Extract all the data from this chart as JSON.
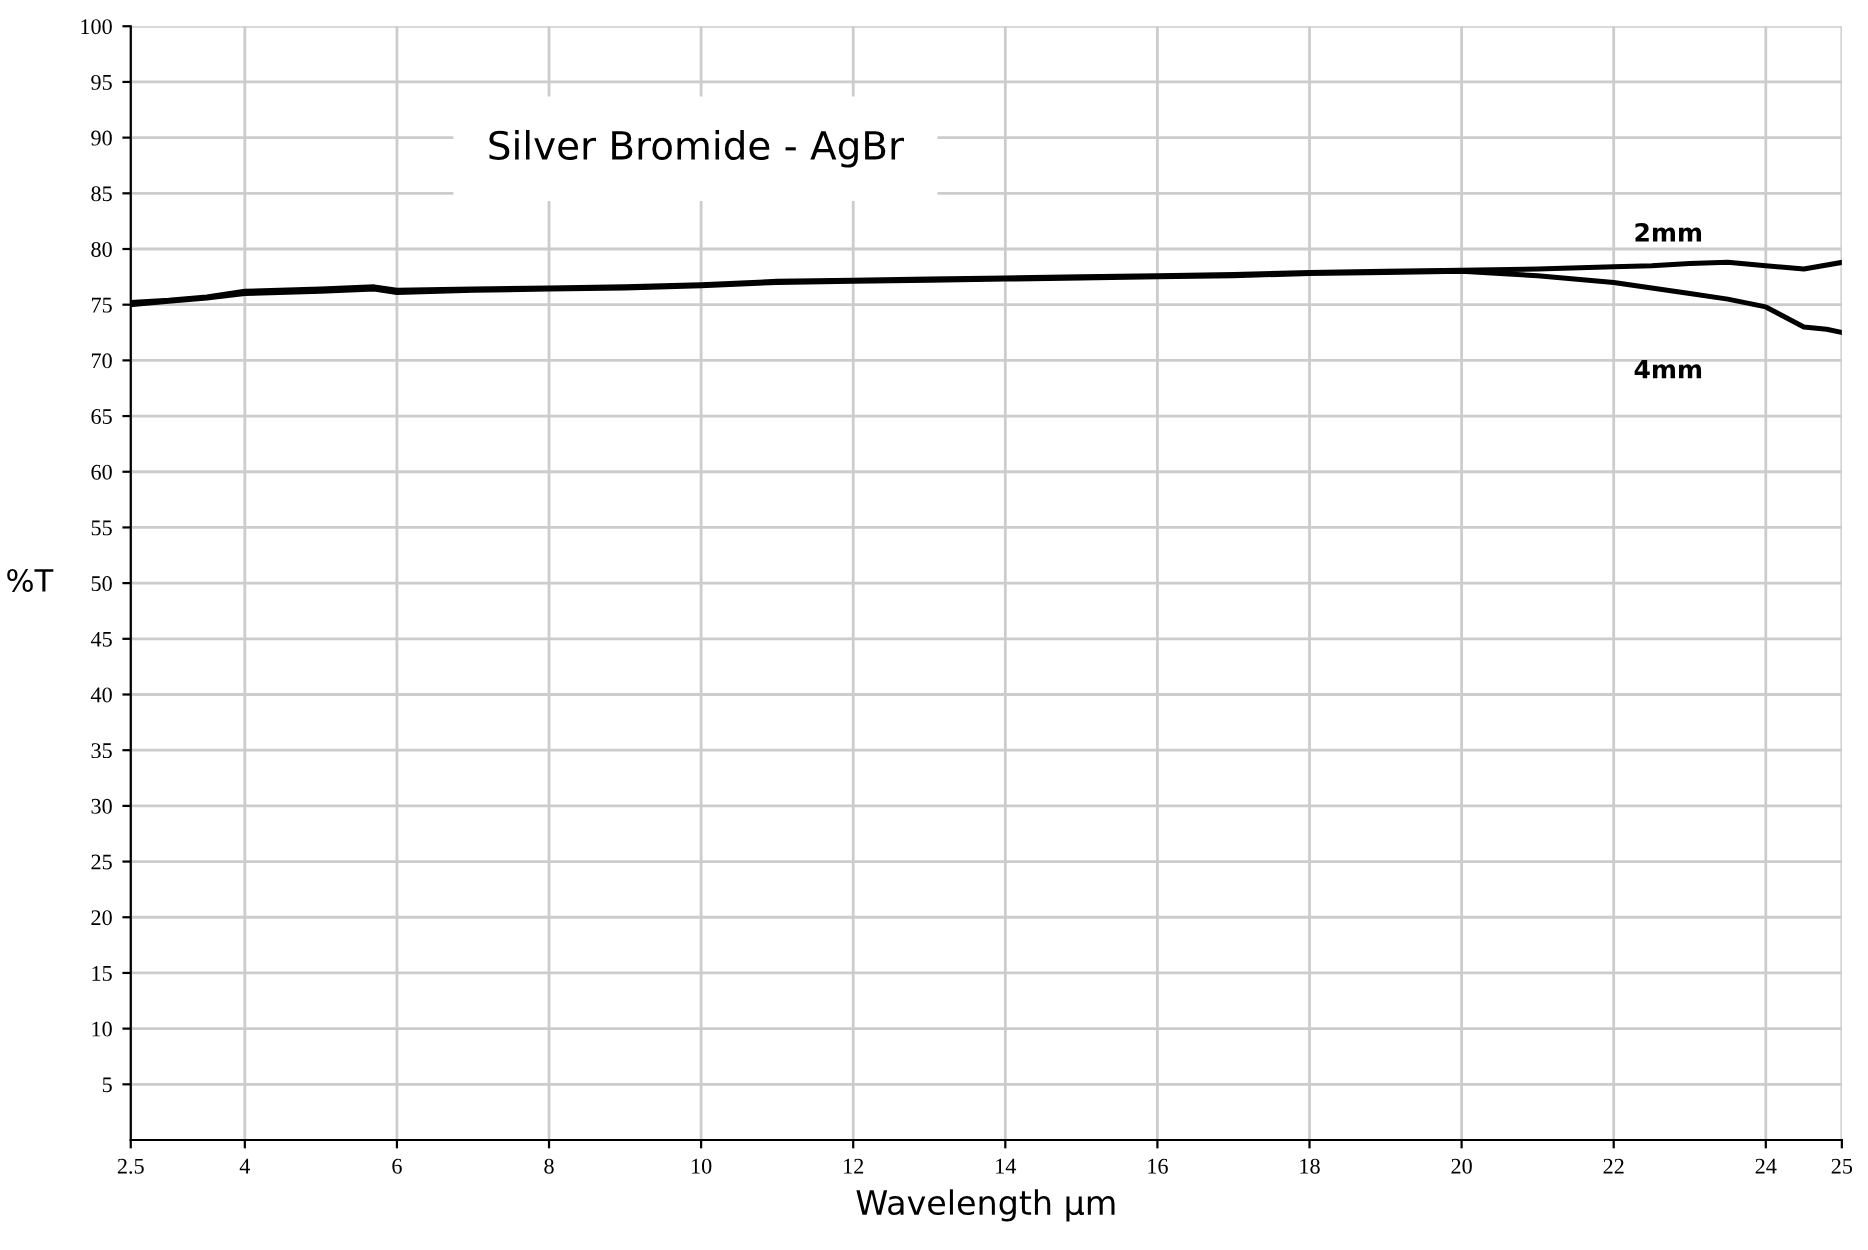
{
  "chart_data": {
    "type": "line",
    "title": "Silver Bromide - AgBr",
    "xlabel": "Wavelength µm",
    "ylabel": "%T",
    "xlim": [
      2.5,
      25
    ],
    "xticks": [
      2.5,
      4,
      6,
      8,
      10,
      12,
      14,
      16,
      18,
      20,
      22,
      24,
      25
    ],
    "ylim": [
      0,
      100
    ],
    "yticks": [
      5,
      10,
      15,
      20,
      25,
      30,
      35,
      40,
      45,
      50,
      55,
      60,
      65,
      70,
      75,
      80,
      85,
      90,
      95,
      100
    ],
    "grid": true,
    "legend": false,
    "marker": "none",
    "line_style": "solid",
    "series": [
      {
        "name": "2mm",
        "color": "#000000",
        "x": [
          2.5,
          3,
          3.5,
          4,
          5,
          5.7,
          6,
          7,
          8,
          9,
          10,
          11,
          12,
          13,
          14,
          15,
          16,
          17,
          18,
          19,
          20,
          21,
          22,
          22.5,
          23,
          23.5,
          24,
          24.5,
          25
        ],
        "values": [
          75.2,
          75.4,
          75.7,
          76.2,
          76.4,
          76.6,
          76.3,
          76.4,
          76.5,
          76.6,
          76.8,
          77.1,
          77.2,
          77.3,
          77.4,
          77.5,
          77.6,
          77.7,
          77.9,
          78.0,
          78.1,
          78.2,
          78.4,
          78.5,
          78.7,
          78.8,
          78.5,
          78.2,
          78.8
        ]
      },
      {
        "name": "4mm",
        "color": "#000000",
        "x": [
          2.5,
          3,
          3.5,
          4,
          5,
          5.7,
          6,
          7,
          8,
          9,
          10,
          11,
          12,
          13,
          14,
          15,
          16,
          17,
          18,
          19,
          20,
          20.5,
          21,
          22,
          22.5,
          23,
          23.5,
          24,
          24.5,
          24.8,
          25
        ],
        "values": [
          75.0,
          75.3,
          75.6,
          76.0,
          76.2,
          76.4,
          76.1,
          76.3,
          76.4,
          76.5,
          76.7,
          77.0,
          77.1,
          77.2,
          77.3,
          77.4,
          77.5,
          77.6,
          77.8,
          77.9,
          78.0,
          77.8,
          77.6,
          77.0,
          76.5,
          76.0,
          75.5,
          74.8,
          73.0,
          72.8,
          72.5
        ]
      }
    ]
  }
}
